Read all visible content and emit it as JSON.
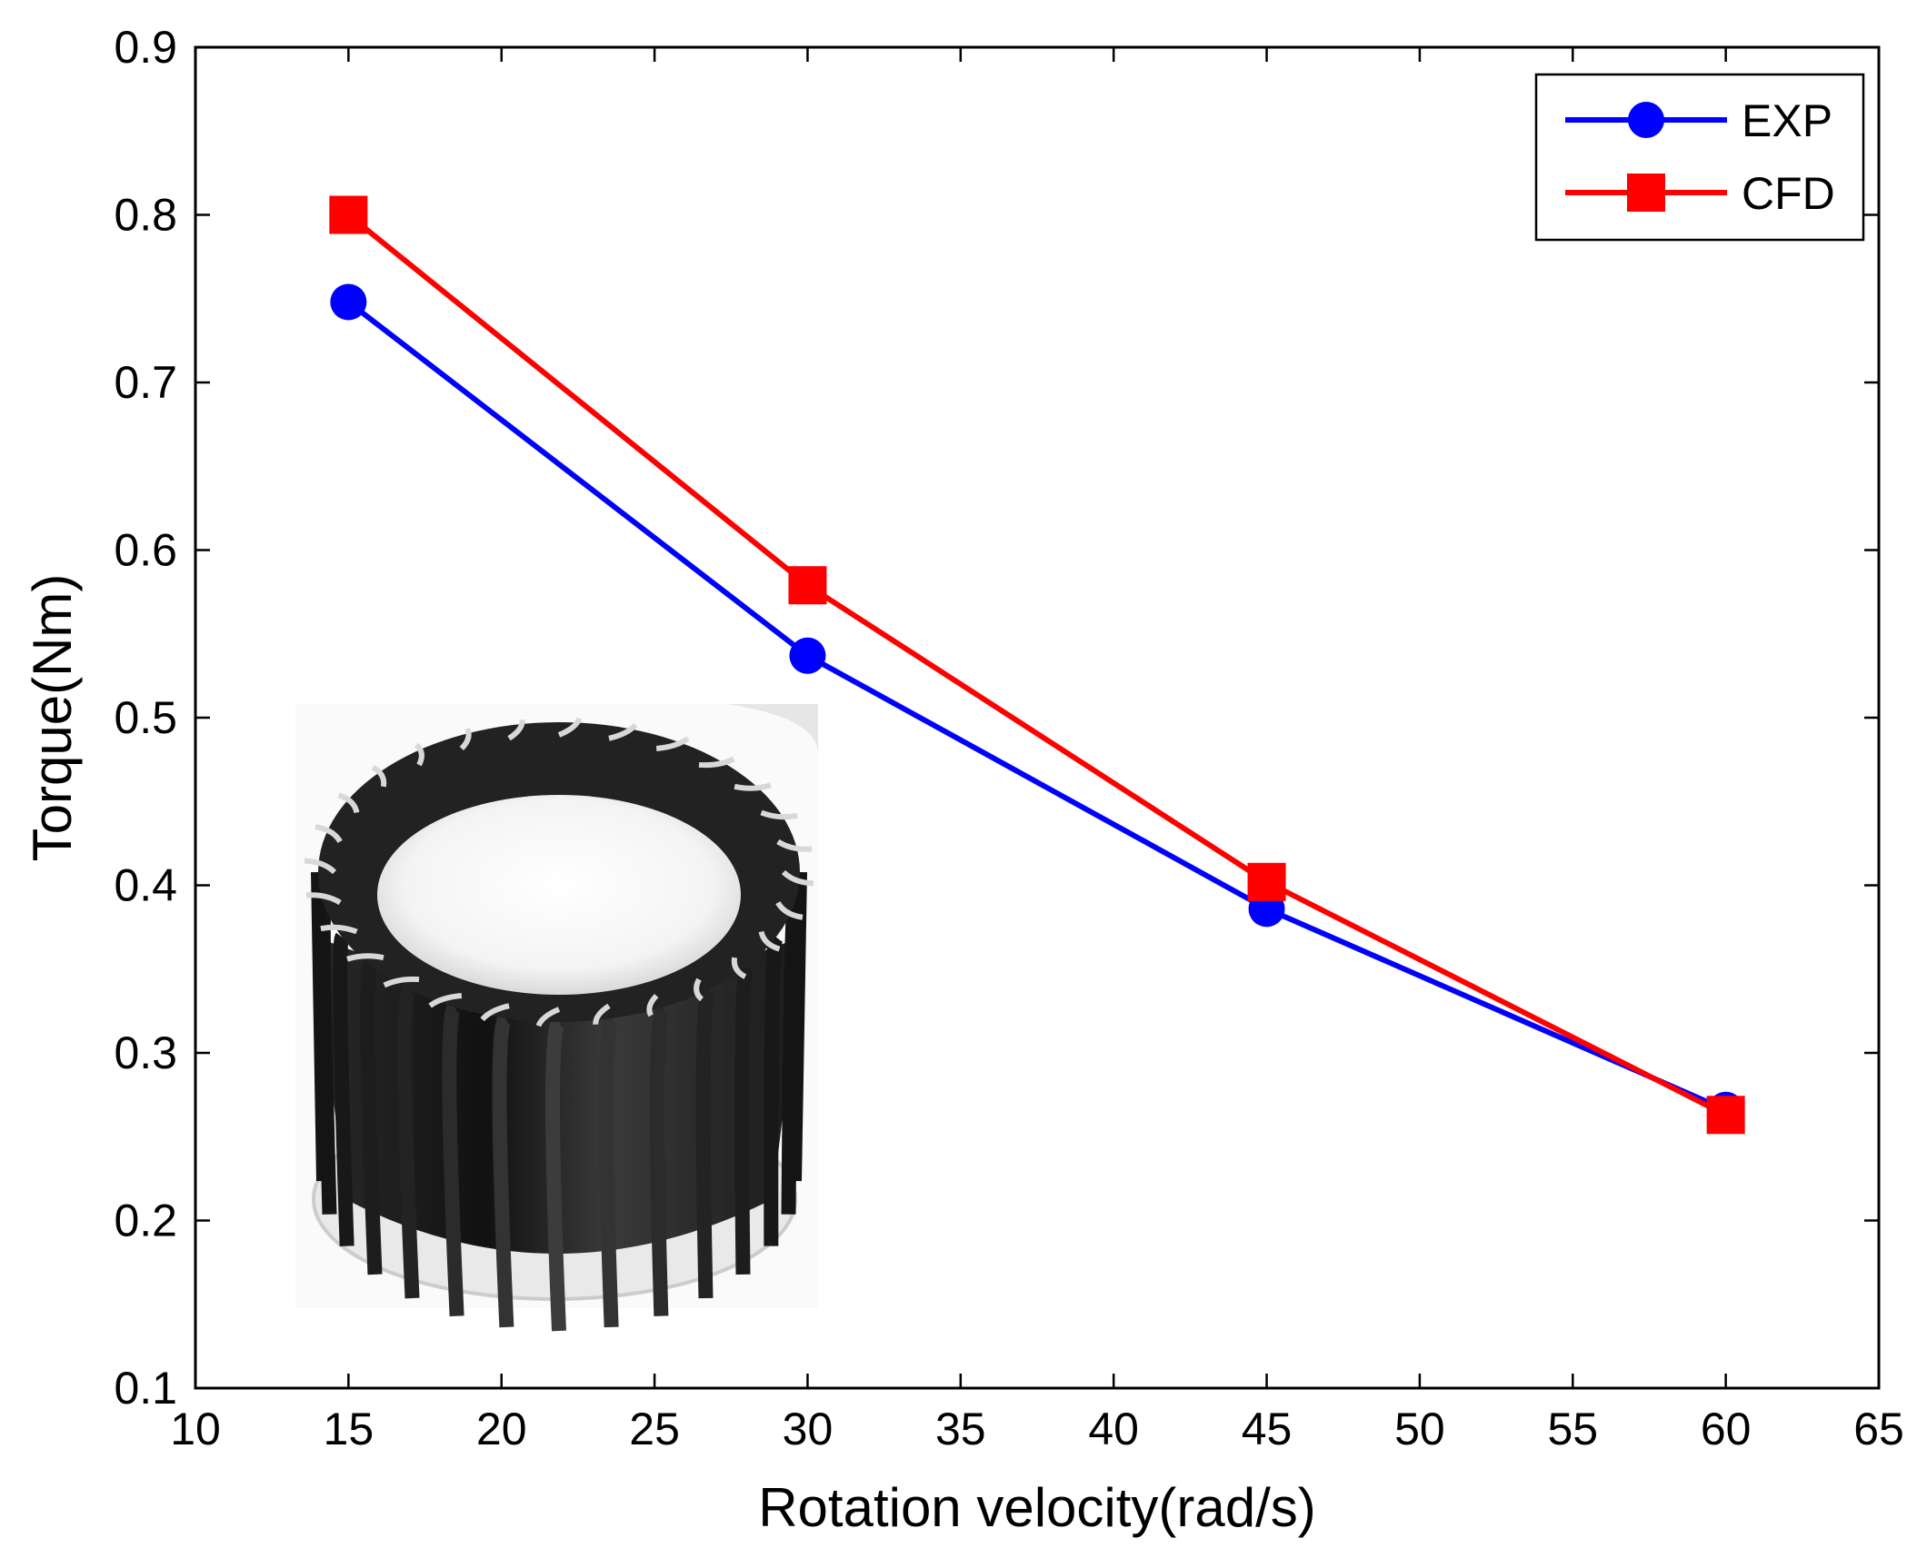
{
  "chart_data": {
    "type": "line",
    "title": "",
    "xlabel": "Rotation velocity(rad/s)",
    "ylabel": "Torque(Nm)",
    "xlim": [
      10,
      65
    ],
    "ylim": [
      0.1,
      0.9
    ],
    "xticks": [
      10,
      15,
      20,
      25,
      30,
      35,
      40,
      45,
      50,
      55,
      60,
      65
    ],
    "yticks": [
      0.1,
      0.2,
      0.3,
      0.4,
      0.5,
      0.6,
      0.7,
      0.8,
      0.9
    ],
    "xtick_labels": [
      "10",
      "15",
      "20",
      "25",
      "30",
      "35",
      "40",
      "45",
      "50",
      "55",
      "60",
      "65"
    ],
    "ytick_labels": [
      "0.1",
      "0.2",
      "0.3",
      "0.4",
      "0.5",
      "0.6",
      "0.7",
      "0.8",
      "0.9"
    ],
    "grid": false,
    "legend_position": "top-right",
    "series": [
      {
        "name": "EXP",
        "color": "#0000ff",
        "marker": "circle",
        "x": [
          15,
          30,
          45,
          60
        ],
        "y": [
          0.748,
          0.537,
          0.386,
          0.266
        ]
      },
      {
        "name": "CFD",
        "color": "#ff0000",
        "marker": "square",
        "x": [
          15,
          30,
          45,
          60
        ],
        "y": [
          0.8,
          0.579,
          0.402,
          0.263
        ]
      }
    ],
    "inset_image": "cross-flow turbine rotor photograph"
  }
}
